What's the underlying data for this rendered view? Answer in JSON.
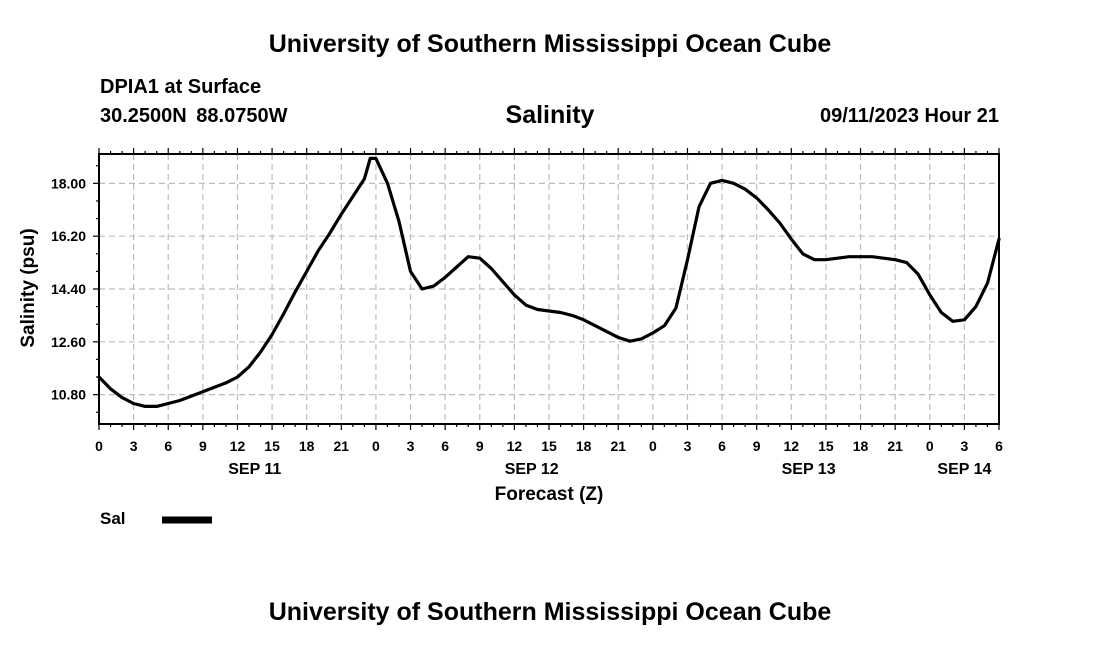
{
  "header": {
    "title": "University of Southern Mississippi Ocean Cube",
    "station": "DPIA1 at Surface",
    "coords": "30.2500N  88.0750W",
    "variable": "Salinity",
    "datetime": "09/11/2023 Hour 21"
  },
  "footer": {
    "title": "University of Southern Mississippi Ocean Cube"
  },
  "legend": {
    "label": "Sal"
  },
  "chart_data": {
    "type": "line",
    "xlabel": "Forecast (Z)",
    "ylabel": "Salinity (psu)",
    "ylim": [
      9.8,
      19.0
    ],
    "xlim": [
      0,
      78
    ],
    "x_unit": "hours from 0Z Sep 11",
    "y_ticks": [
      {
        "value": 10.8,
        "label": "10.80"
      },
      {
        "value": 12.6,
        "label": "12.60"
      },
      {
        "value": 14.4,
        "label": "14.40"
      },
      {
        "value": 16.2,
        "label": "16.20"
      },
      {
        "value": 18.0,
        "label": "18.00"
      }
    ],
    "x_ticks": [
      {
        "value": 0,
        "label": "0"
      },
      {
        "value": 3,
        "label": "3"
      },
      {
        "value": 6,
        "label": "6"
      },
      {
        "value": 9,
        "label": "9"
      },
      {
        "value": 12,
        "label": "12"
      },
      {
        "value": 15,
        "label": "15"
      },
      {
        "value": 18,
        "label": "18"
      },
      {
        "value": 21,
        "label": "21"
      },
      {
        "value": 24,
        "label": "0"
      },
      {
        "value": 27,
        "label": "3"
      },
      {
        "value": 30,
        "label": "6"
      },
      {
        "value": 33,
        "label": "9"
      },
      {
        "value": 36,
        "label": "12"
      },
      {
        "value": 39,
        "label": "15"
      },
      {
        "value": 42,
        "label": "18"
      },
      {
        "value": 45,
        "label": "21"
      },
      {
        "value": 48,
        "label": "0"
      },
      {
        "value": 51,
        "label": "3"
      },
      {
        "value": 54,
        "label": "6"
      },
      {
        "value": 57,
        "label": "9"
      },
      {
        "value": 60,
        "label": "12"
      },
      {
        "value": 63,
        "label": "15"
      },
      {
        "value": 66,
        "label": "18"
      },
      {
        "value": 69,
        "label": "21"
      },
      {
        "value": 72,
        "label": "0"
      },
      {
        "value": 75,
        "label": "3"
      },
      {
        "value": 78,
        "label": "6"
      }
    ],
    "day_labels": [
      {
        "value": 13.5,
        "label": "SEP 11"
      },
      {
        "value": 37.5,
        "label": "SEP 12"
      },
      {
        "value": 61.5,
        "label": "SEP 13"
      },
      {
        "value": 75.0,
        "label": "SEP 14"
      }
    ],
    "grid": true,
    "series": [
      {
        "name": "Sal",
        "x": [
          0,
          1,
          2,
          3,
          4,
          5,
          6,
          7,
          8,
          9,
          10,
          11,
          12,
          13,
          14,
          15,
          16,
          17,
          18,
          19,
          20,
          21,
          21.5,
          22.5,
          23,
          23.5,
          24,
          25,
          26,
          27,
          28,
          29,
          30,
          31,
          32,
          33,
          34,
          35,
          36,
          37,
          38,
          39,
          40,
          41,
          42,
          43,
          44,
          45,
          46,
          47,
          48,
          49,
          50,
          51,
          52,
          53,
          54,
          55,
          56,
          57,
          58,
          59,
          60,
          61,
          62,
          63,
          64,
          65,
          66,
          67,
          68,
          69,
          70,
          71,
          72,
          73,
          74,
          75,
          76,
          77,
          78
        ],
        "values": [
          11.4,
          11.0,
          10.7,
          10.5,
          10.4,
          10.4,
          10.5,
          10.6,
          10.75,
          10.9,
          11.05,
          11.2,
          11.4,
          11.75,
          12.25,
          12.85,
          13.55,
          14.3,
          15.0,
          15.7,
          16.3,
          16.95,
          17.25,
          17.85,
          18.15,
          18.85,
          18.85,
          18.0,
          16.7,
          15.0,
          14.4,
          14.5,
          14.8,
          15.15,
          15.5,
          15.45,
          15.1,
          14.65,
          14.2,
          13.85,
          13.7,
          13.65,
          13.6,
          13.5,
          13.35,
          13.15,
          12.95,
          12.75,
          12.62,
          12.7,
          12.9,
          13.15,
          13.75,
          15.4,
          17.2,
          18.0,
          18.1,
          18.0,
          17.8,
          17.5,
          17.1,
          16.65,
          16.1,
          15.6,
          15.4,
          15.4,
          15.45,
          15.5,
          15.5,
          15.5,
          15.45,
          15.4,
          15.3,
          14.9,
          14.2,
          13.6,
          13.3,
          13.35,
          13.8,
          14.6,
          16.1
        ]
      }
    ]
  }
}
